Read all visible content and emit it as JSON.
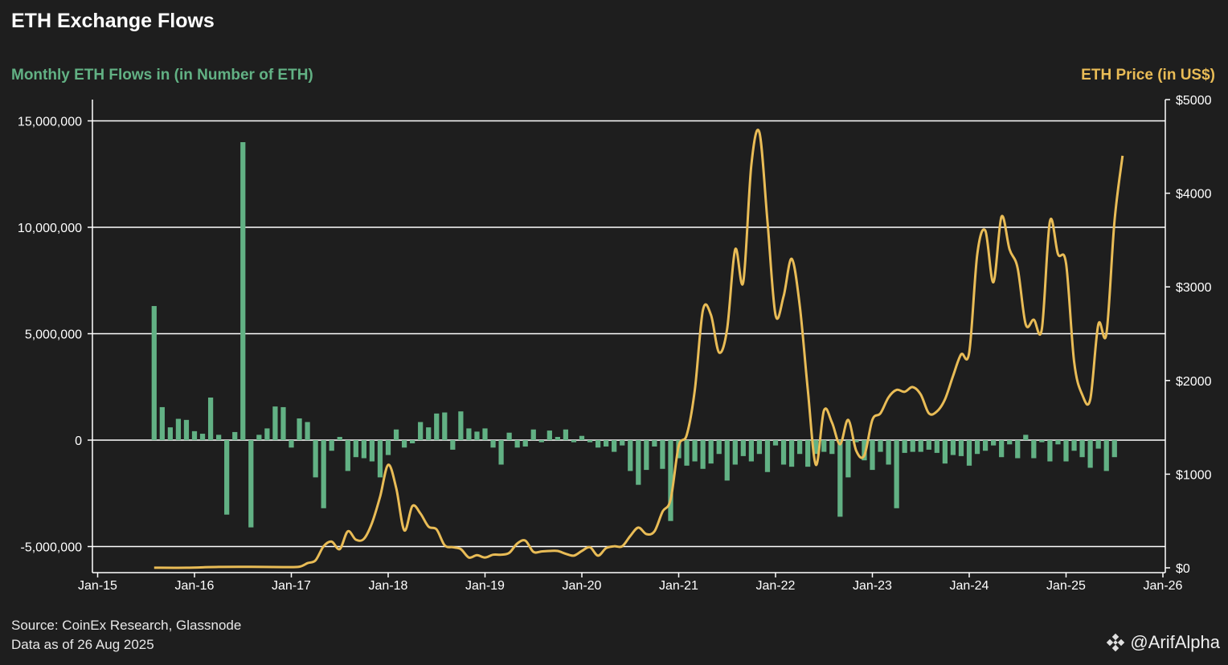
{
  "header": {
    "title": "ETH Exchange Flows",
    "left_axis_title": "Monthly ETH Flows in (in Number of ETH)",
    "right_axis_title": "ETH Price (in US$)"
  },
  "footer": {
    "source": "Source: CoinEx Research, Glassnode",
    "data_as_of": "Data as of 26 Aug 2025",
    "brand": "@ArifAlpha",
    "brand_icon": "binance-diamond-icon"
  },
  "colors": {
    "background": "#1e1e1e",
    "flows": "#62b184",
    "price": "#e9bc56",
    "grid": "#ffffff"
  },
  "chart_data": {
    "type": "bar+line",
    "title": "ETH Exchange Flows",
    "x_ticks": [
      "Jan-15",
      "Jan-16",
      "Jan-17",
      "Jan-18",
      "Jan-19",
      "Jan-20",
      "Jan-21",
      "Jan-22",
      "Jan-23",
      "Jan-24",
      "Jan-25",
      "Jan-26"
    ],
    "x_range": [
      "2015-01",
      "2026-01"
    ],
    "y_left": {
      "label": "Monthly ETH Flows in (in Number of ETH)",
      "range": [
        -5000000,
        15000000
      ],
      "ticks": [
        15000000,
        10000000,
        5000000,
        0,
        -5000000
      ],
      "tick_labels": [
        "15,000,000",
        "10,000,000",
        "5,000,000",
        "0",
        "-5,000,000"
      ]
    },
    "y_right": {
      "label": "ETH Price (in US$)",
      "range": [
        0,
        5000
      ],
      "ticks": [
        5000,
        4000,
        3000,
        2000,
        1000,
        0
      ],
      "tick_labels": [
        "$5000",
        "$4000",
        "$3000",
        "$2000",
        "$1000",
        "$0"
      ]
    },
    "grid": "horizontal",
    "series": [
      {
        "type": "bar",
        "start": "2015-08",
        "values": [
          6300000,
          1550000,
          600000,
          1000000,
          950000,
          420000,
          300000,
          2000000,
          250000,
          -3500000,
          380000,
          14000000,
          -4100000,
          250000,
          550000,
          1580000,
          1550000,
          -350000,
          1020000,
          850000,
          -1750000,
          -3200000,
          -500000,
          150000,
          -1450000,
          -800000,
          -850000,
          -1000000,
          -1750000,
          -700000,
          500000,
          -350000,
          -150000,
          850000,
          600000,
          1250000,
          1300000,
          -450000,
          1350000,
          550000,
          400000,
          550000,
          -350000,
          -1150000,
          350000,
          -350000,
          -300000,
          500000,
          -100000,
          450000,
          150000,
          500000,
          -100000,
          200000,
          -100000,
          -350000,
          -300000,
          -550000,
          -250000,
          -1450000,
          -2100000,
          -1400000,
          -300000,
          -1350000,
          -3800000,
          -850000,
          -1200000,
          -1000000,
          -1350000,
          -1100000,
          -650000,
          -1900000,
          -1150000,
          -750000,
          -1000000,
          -650000,
          -1500000,
          -250000,
          -1150000,
          -1250000,
          -650000,
          -1250000,
          -650000,
          -550000,
          -650000,
          -3600000,
          -1750000,
          -100000,
          -950000,
          -1400000,
          -550000,
          -1150000,
          -3200000,
          -600000,
          -550000,
          -550000,
          -450000,
          -600000,
          -1100000,
          -700000,
          -750000,
          -1200000,
          -650000,
          -500000,
          -250000,
          -800000,
          -200000,
          -850000,
          250000,
          -850000,
          -100000,
          -1000000,
          -200000,
          -1000000,
          -500000,
          -800000,
          -1300000,
          -400000,
          -1450000,
          -800000
        ]
      },
      {
        "type": "line",
        "name": "ETH Price (in US$)",
        "points": [
          [
            "2015-08",
            1
          ],
          [
            "2015-12",
            1
          ],
          [
            "2016-04",
            10
          ],
          [
            "2016-08",
            11
          ],
          [
            "2016-12",
            8
          ],
          [
            "2017-02",
            12
          ],
          [
            "2017-03",
            50
          ],
          [
            "2017-04",
            80
          ],
          [
            "2017-05",
            230
          ],
          [
            "2017-06",
            280
          ],
          [
            "2017-07",
            200
          ],
          [
            "2017-08",
            390
          ],
          [
            "2017-09",
            300
          ],
          [
            "2017-10",
            310
          ],
          [
            "2017-11",
            480
          ],
          [
            "2017-12",
            760
          ],
          [
            "2018-01",
            1100
          ],
          [
            "2018-02",
            850
          ],
          [
            "2018-03",
            400
          ],
          [
            "2018-04",
            660
          ],
          [
            "2018-05",
            580
          ],
          [
            "2018-06",
            440
          ],
          [
            "2018-07",
            410
          ],
          [
            "2018-08",
            240
          ],
          [
            "2018-09",
            220
          ],
          [
            "2018-10",
            200
          ],
          [
            "2018-11",
            110
          ],
          [
            "2018-12",
            135
          ],
          [
            "2019-01",
            110
          ],
          [
            "2019-02",
            140
          ],
          [
            "2019-03",
            140
          ],
          [
            "2019-04",
            160
          ],
          [
            "2019-05",
            260
          ],
          [
            "2019-06",
            290
          ],
          [
            "2019-07",
            170
          ],
          [
            "2019-08",
            175
          ],
          [
            "2019-09",
            180
          ],
          [
            "2019-10",
            180
          ],
          [
            "2019-11",
            150
          ],
          [
            "2019-12",
            130
          ],
          [
            "2020-01",
            180
          ],
          [
            "2020-02",
            220
          ],
          [
            "2020-03",
            130
          ],
          [
            "2020-04",
            210
          ],
          [
            "2020-05",
            230
          ],
          [
            "2020-06",
            230
          ],
          [
            "2020-07",
            340
          ],
          [
            "2020-08",
            430
          ],
          [
            "2020-09",
            360
          ],
          [
            "2020-10",
            390
          ],
          [
            "2020-11",
            600
          ],
          [
            "2020-12",
            730
          ],
          [
            "2021-01",
            1300
          ],
          [
            "2021-02",
            1420
          ],
          [
            "2021-03",
            1900
          ],
          [
            "2021-04",
            2750
          ],
          [
            "2021-05",
            2700
          ],
          [
            "2021-06",
            2300
          ],
          [
            "2021-07",
            2550
          ],
          [
            "2021-08",
            3400
          ],
          [
            "2021-09",
            3050
          ],
          [
            "2021-10",
            4300
          ],
          [
            "2021-11",
            4650
          ],
          [
            "2021-12",
            3700
          ],
          [
            "2022-01",
            2700
          ],
          [
            "2022-02",
            2900
          ],
          [
            "2022-03",
            3300
          ],
          [
            "2022-04",
            2800
          ],
          [
            "2022-05",
            1900
          ],
          [
            "2022-06",
            1100
          ],
          [
            "2022-07",
            1680
          ],
          [
            "2022-08",
            1550
          ],
          [
            "2022-09",
            1320
          ],
          [
            "2022-10",
            1580
          ],
          [
            "2022-11",
            1250
          ],
          [
            "2022-12",
            1200
          ],
          [
            "2023-01",
            1580
          ],
          [
            "2023-02",
            1650
          ],
          [
            "2023-03",
            1820
          ],
          [
            "2023-04",
            1900
          ],
          [
            "2023-05",
            1880
          ],
          [
            "2023-06",
            1930
          ],
          [
            "2023-07",
            1850
          ],
          [
            "2023-08",
            1650
          ],
          [
            "2023-09",
            1670
          ],
          [
            "2023-10",
            1800
          ],
          [
            "2023-11",
            2050
          ],
          [
            "2023-12",
            2280
          ],
          [
            "2024-01",
            2300
          ],
          [
            "2024-02",
            3350
          ],
          [
            "2024-03",
            3600
          ],
          [
            "2024-04",
            3050
          ],
          [
            "2024-05",
            3750
          ],
          [
            "2024-06",
            3400
          ],
          [
            "2024-07",
            3200
          ],
          [
            "2024-08",
            2600
          ],
          [
            "2024-09",
            2650
          ],
          [
            "2024-10",
            2550
          ],
          [
            "2024-11",
            3700
          ],
          [
            "2024-12",
            3350
          ],
          [
            "2025-01",
            3250
          ],
          [
            "2025-02",
            2200
          ],
          [
            "2025-03",
            1850
          ],
          [
            "2025-04",
            1800
          ],
          [
            "2025-05",
            2600
          ],
          [
            "2025-06",
            2500
          ],
          [
            "2025-07",
            3700
          ],
          [
            "2025-08",
            4400
          ]
        ]
      }
    ]
  }
}
